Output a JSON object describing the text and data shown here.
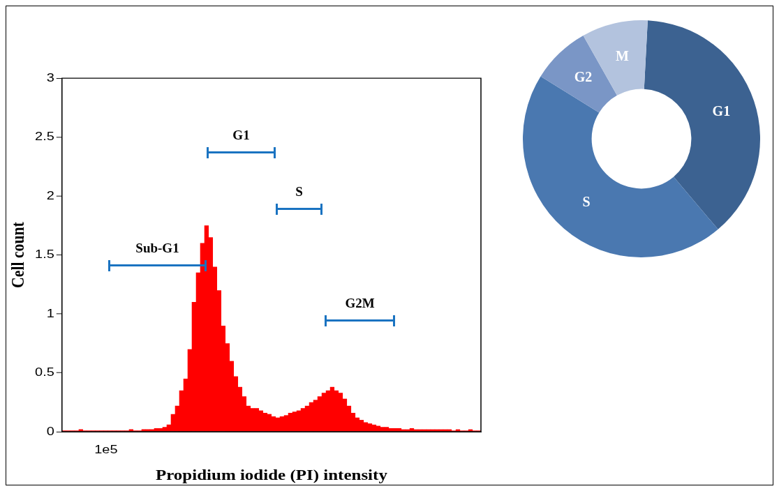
{
  "chart_data": [
    {
      "type": "bar",
      "xlabel": "Propidium iodide (PI) intensity",
      "ylabel": "Cell count",
      "color": "#ff0000",
      "categories": [
        null,
        null,
        null,
        null,
        null,
        null,
        null,
        null,
        null,
        null,
        "1e5",
        null,
        null,
        null,
        null,
        null,
        null,
        null,
        null,
        null,
        null,
        null,
        null,
        null,
        null,
        null,
        null,
        null,
        null,
        null,
        null,
        null,
        null,
        null,
        null,
        null,
        null,
        null,
        null,
        null,
        null,
        null,
        null,
        null,
        null,
        null,
        null,
        null,
        null,
        null,
        null,
        null,
        null,
        null,
        null,
        null,
        null,
        null,
        null,
        null,
        null,
        null,
        null,
        null,
        null,
        null,
        null,
        null,
        null,
        null,
        null,
        null,
        null,
        null,
        null,
        null,
        null,
        null,
        null,
        null,
        null,
        null,
        null,
        null,
        null,
        null,
        null,
        null,
        null,
        null,
        null,
        null,
        null,
        null,
        null,
        null,
        null,
        null,
        null,
        null
      ],
      "values": [
        0.01,
        0.01,
        0.01,
        0.01,
        0.02,
        0.01,
        0.01,
        0.01,
        0.01,
        0.01,
        0.01,
        0.01,
        0.01,
        0.01,
        0.01,
        0.01,
        0.02,
        0.01,
        0.01,
        0.02,
        0.02,
        0.02,
        0.03,
        0.03,
        0.04,
        0.06,
        0.15,
        0.22,
        0.35,
        0.45,
        0.7,
        1.1,
        1.35,
        1.6,
        1.75,
        1.65,
        1.4,
        1.2,
        0.9,
        0.75,
        0.6,
        0.47,
        0.38,
        0.3,
        0.22,
        0.2,
        0.2,
        0.18,
        0.16,
        0.15,
        0.13,
        0.12,
        0.13,
        0.14,
        0.16,
        0.17,
        0.18,
        0.2,
        0.22,
        0.25,
        0.27,
        0.3,
        0.33,
        0.35,
        0.38,
        0.35,
        0.33,
        0.28,
        0.22,
        0.16,
        0.12,
        0.1,
        0.08,
        0.07,
        0.06,
        0.05,
        0.04,
        0.04,
        0.03,
        0.03,
        0.03,
        0.02,
        0.02,
        0.03,
        0.02,
        0.02,
        0.02,
        0.02,
        0.02,
        0.02,
        0.02,
        0.02,
        0.02,
        0.01,
        0.02,
        0.01,
        0.01,
        0.02,
        0.01,
        0.01
      ],
      "ylim": [
        0,
        3
      ],
      "yticks": [
        0,
        0.5,
        1,
        1.5,
        2,
        2.5,
        3
      ],
      "grid": false,
      "legend": false,
      "annotations": [
        "Sub-G1",
        "G1",
        "S",
        "G2M"
      ]
    },
    {
      "type": "donut",
      "categories": [
        "G1",
        "S",
        "G2",
        "M"
      ],
      "values": [
        38,
        45,
        8,
        9
      ],
      "colors": [
        "#3c6291",
        "#4a78b0",
        "#7a96c6",
        "#b3c3de"
      ],
      "legend": false,
      "data_labels": false
    }
  ]
}
